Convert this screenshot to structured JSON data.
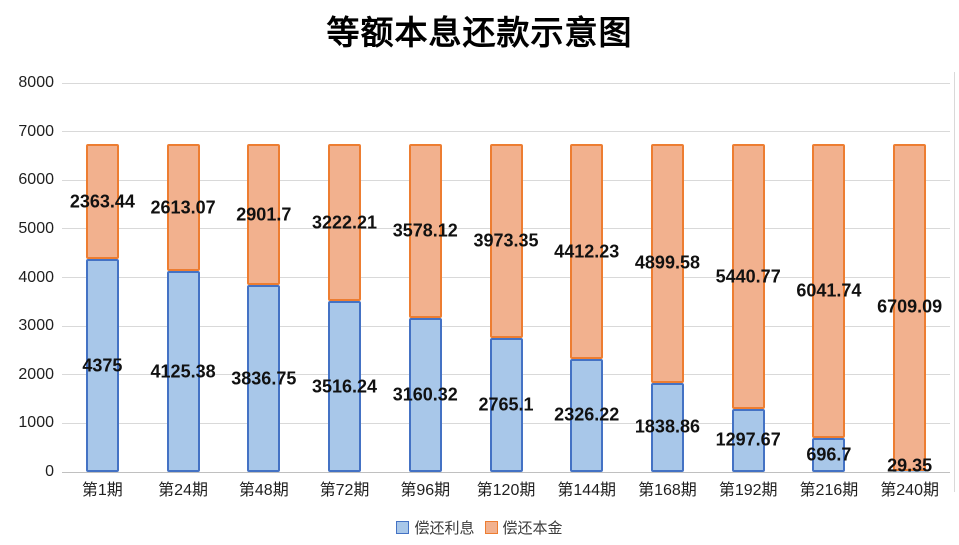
{
  "title": "等额本息还款示意图",
  "colors": {
    "interest_fill": "#a8c7e9",
    "interest_border": "#4472c4",
    "principal_fill": "#f2b18e",
    "principal_border": "#ed7d31",
    "gridline": "#d9d9d9",
    "axis_line": "#c0c0c0",
    "label_text": "#111111"
  },
  "legend": {
    "items": [
      {
        "label": "偿还利息",
        "swatch": "blue-square"
      },
      {
        "label": "偿还本金",
        "swatch": "orange-square"
      }
    ]
  },
  "chart_data": {
    "type": "bar",
    "stacked": true,
    "title": "等额本息还款示意图",
    "categories": [
      "第1期",
      "第24期",
      "第48期",
      "第72期",
      "第96期",
      "第120期",
      "第144期",
      "第168期",
      "第192期",
      "第216期",
      "第240期"
    ],
    "series": [
      {
        "name": "偿还利息",
        "fill": "#a8c7e9",
        "border": "#4472c4",
        "values": [
          4375,
          4125.38,
          3836.75,
          3516.24,
          3160.32,
          2765.1,
          2326.22,
          1838.86,
          1297.67,
          696.7,
          29.35
        ]
      },
      {
        "name": "偿还本金",
        "fill": "#f2b18e",
        "border": "#ed7d31",
        "values": [
          2363.44,
          2613.07,
          2901.7,
          3222.21,
          3578.12,
          3973.35,
          4412.23,
          4899.58,
          5440.77,
          6041.74,
          6709.09
        ]
      }
    ],
    "xlabel": "",
    "ylabel": "",
    "ylim": [
      0,
      8000
    ],
    "y_ticks": [
      0,
      1000,
      2000,
      3000,
      4000,
      5000,
      6000,
      7000,
      8000
    ],
    "grid": true,
    "data_labels": true,
    "legend_position": "bottom"
  }
}
